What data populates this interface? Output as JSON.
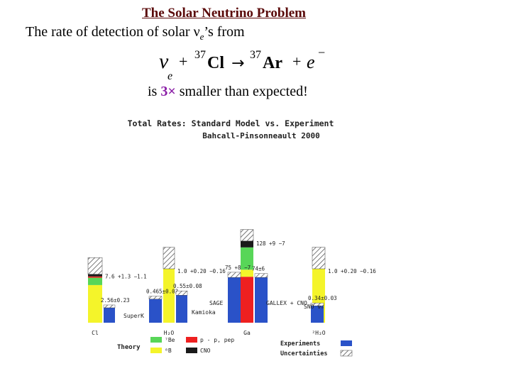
{
  "slide": {
    "title": "The Solar Neutrino Problem",
    "intro_prefix": "The rate of detection of solar ",
    "intro_nu": "ν",
    "intro_sub": "e",
    "intro_suffix": "’s from",
    "equation": {
      "nu": "ν",
      "nu_sub": "e",
      "plus1": "+",
      "mass1": "37",
      "element1": "Cl",
      "arrow": "→",
      "mass2": "37",
      "element2": "Ar",
      "plus2": "+",
      "electron": "e",
      "electron_sup": "−"
    },
    "result_prefix": "is ",
    "result_factor": "3×",
    "result_suffix": " smaller than expected!"
  },
  "chart_data": {
    "type": "bar",
    "title": "Total Rates: Standard Model vs. Experiment",
    "subtitle": "Bahcall-Pinsonneault 2000",
    "categories": [
      "Cl",
      "H₂O",
      "Ga",
      "²H₂O"
    ],
    "experiment_labels": [
      "SuperK",
      "Kamioka",
      "SAGE",
      "GALLEX + CNO",
      "SNO νₑ"
    ],
    "theory": [
      {
        "category": "Cl",
        "label": "7.6 +1.3 −1.1",
        "components": [
          {
            "name": "⁸B",
            "value": 5.9,
            "color": "#f4f42a"
          },
          {
            "name": "⁷Be",
            "value": 1.15,
            "color": "#58d658"
          },
          {
            "name": "p - p, pep",
            "value": 0.2,
            "color": "#ee2020"
          },
          {
            "name": "CNO",
            "value": 0.35,
            "color": "#1a1a1a"
          }
        ],
        "uncertainty": 1.3
      },
      {
        "category": "H₂O",
        "label": "1.0 +0.20 −0.16",
        "components": [
          {
            "name": "⁸B",
            "value": 1.0,
            "color": "#f4f42a"
          }
        ],
        "uncertainty": 0.2
      },
      {
        "category": "Ga",
        "label": "128 +9 −7",
        "components": [
          {
            "name": "p - p, pep",
            "value": 72,
            "color": "#ee2020"
          },
          {
            "name": "⁸B",
            "value": 11,
            "color": "#f4f42a"
          },
          {
            "name": "⁷Be",
            "value": 35,
            "color": "#58d658"
          },
          {
            "name": "CNO",
            "value": 10,
            "color": "#1a1a1a"
          }
        ],
        "uncertainty": 9
      },
      {
        "category": "²H₂O",
        "label": "1.0 +0.20 −0.16",
        "components": [
          {
            "name": "⁸B",
            "value": 1.0,
            "color": "#f4f42a"
          }
        ],
        "uncertainty": 0.2
      }
    ],
    "experiments": [
      {
        "name": "Cl",
        "value": 2.56,
        "label": "2.56±0.23",
        "uncertainty": 0.23
      },
      {
        "name": "SuperK",
        "value": 0.465,
        "label": "0.465±0.02",
        "uncertainty": 0.02
      },
      {
        "name": "Kamioka",
        "value": 0.55,
        "label": "0.55±0.08",
        "uncertainty": 0.08
      },
      {
        "name": "SAGE",
        "value": 75,
        "label": "75 +8 −7",
        "uncertainty": 8
      },
      {
        "name": "GALLEX + CNO",
        "value": 74,
        "label": "74±6",
        "uncertainty": 6
      },
      {
        "name": "SNO",
        "value": 0.34,
        "label": "0.34±0.03",
        "uncertainty": 0.03
      }
    ],
    "legend": {
      "theory_title": "Theory",
      "experiment_title": "Experiments",
      "uncertainty_title": "Uncertainties",
      "items": [
        {
          "name": "⁷Be",
          "color": "#58d658"
        },
        {
          "name": "p - p, pep",
          "color": "#ee2020"
        },
        {
          "name": "⁸B",
          "color": "#f4f42a"
        },
        {
          "name": "CNO",
          "color": "#1a1a1a"
        }
      ],
      "experiment_color": "#2a52c8",
      "placement": "bottom"
    },
    "grid": false
  }
}
